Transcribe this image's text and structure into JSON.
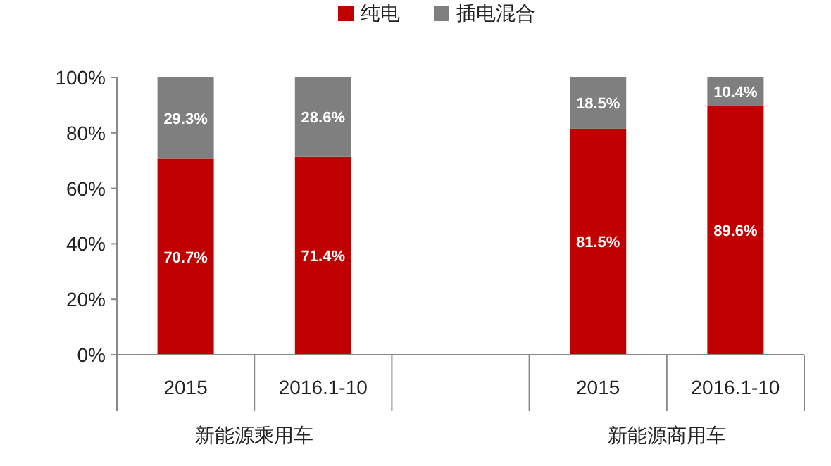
{
  "chart_data": {
    "type": "bar",
    "stacked": true,
    "categories": [
      "2015",
      "2016.1-10",
      null,
      "2015",
      "2016.1-10"
    ],
    "series": [
      {
        "name": "纯电",
        "color": "#c00000",
        "values": [
          70.7,
          71.4,
          null,
          81.5,
          89.6
        ],
        "value_labels": [
          "70.7%",
          "71.4%",
          null,
          "81.5%",
          "89.6%"
        ]
      },
      {
        "name": "插电混合",
        "color": "#7f7f7f",
        "values": [
          29.3,
          28.6,
          null,
          18.5,
          10.4
        ],
        "value_labels": [
          "29.3%",
          "28.6%",
          null,
          "18.5%",
          "10.4%"
        ]
      }
    ],
    "ylim": [
      0,
      100
    ],
    "yticks": [
      {
        "value": 0,
        "label": "0%"
      },
      {
        "value": 20,
        "label": "20%"
      },
      {
        "value": 40,
        "label": "40%"
      },
      {
        "value": 60,
        "label": "60%"
      },
      {
        "value": 80,
        "label": "80%"
      },
      {
        "value": 100,
        "label": "100%"
      }
    ],
    "annotations": [
      "新能源乘用车",
      "新能源商用车"
    ],
    "legend": "top",
    "grid": false
  }
}
